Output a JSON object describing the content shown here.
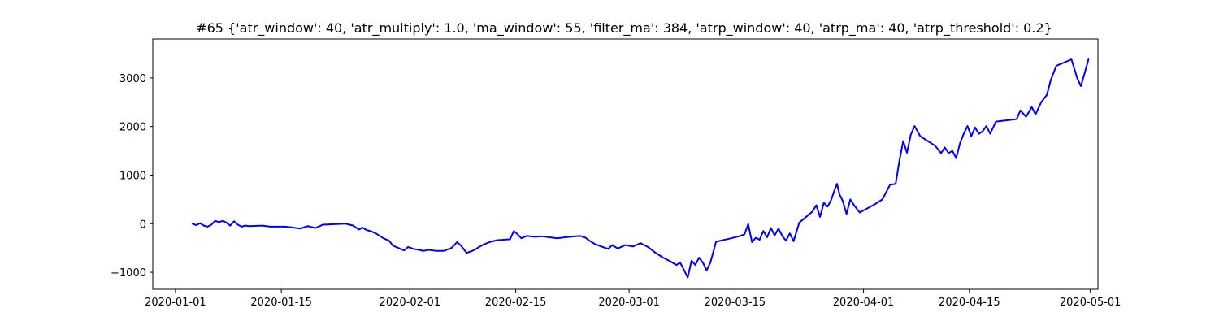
{
  "chart_data": {
    "type": "line",
    "title": "#65 {'atr_window': 40, 'atr_multiply': 1.0, 'ma_window': 55, 'filter_ma': 384, 'atrp_window': 40, 'atrp_ma': 40, 'atrp_threshold': 0.2}",
    "xlabel": "",
    "ylabel": "",
    "x_ticks": [
      "2020-01-01",
      "2020-01-15",
      "2020-02-01",
      "2020-02-15",
      "2020-03-01",
      "2020-03-15",
      "2020-04-01",
      "2020-04-15",
      "2020-05-01"
    ],
    "y_ticks": [
      -1000,
      0,
      1000,
      2000,
      3000
    ],
    "xlim": [
      "2019-12-29",
      "2020-05-02"
    ],
    "ylim": [
      -1350,
      3800
    ],
    "grid": false,
    "series": [
      {
        "color": "#0000ff",
        "points": [
          [
            "2020-01-03",
            0
          ],
          [
            "2020-01-03",
            -30
          ],
          [
            "2020-01-04",
            10
          ],
          [
            "2020-01-04",
            -40
          ],
          [
            "2020-01-05",
            -60
          ],
          [
            "2020-01-05",
            -20
          ],
          [
            "2020-01-06",
            60
          ],
          [
            "2020-01-06",
            30
          ],
          [
            "2020-01-07",
            60
          ],
          [
            "2020-01-07",
            20
          ],
          [
            "2020-01-08",
            -40
          ],
          [
            "2020-01-08",
            50
          ],
          [
            "2020-01-09",
            -20
          ],
          [
            "2020-01-09",
            -60
          ],
          [
            "2020-01-10",
            -40
          ],
          [
            "2020-01-10",
            -50
          ],
          [
            "2020-01-12",
            -40
          ],
          [
            "2020-01-13",
            -60
          ],
          [
            "2020-01-15",
            -60
          ],
          [
            "2020-01-16",
            -80
          ],
          [
            "2020-01-17",
            -100
          ],
          [
            "2020-01-18",
            -50
          ],
          [
            "2020-01-19",
            -90
          ],
          [
            "2020-01-20",
            -20
          ],
          [
            "2020-01-23",
            0
          ],
          [
            "2020-01-24",
            -40
          ],
          [
            "2020-01-25",
            -120
          ],
          [
            "2020-01-25",
            -80
          ],
          [
            "2020-01-26",
            -130
          ],
          [
            "2020-01-26",
            -150
          ],
          [
            "2020-01-27",
            -200
          ],
          [
            "2020-01-28",
            -300
          ],
          [
            "2020-01-29",
            -350
          ],
          [
            "2020-01-29",
            -450
          ],
          [
            "2020-01-30",
            -500
          ],
          [
            "2020-01-31",
            -550
          ],
          [
            "2020-01-31",
            -480
          ],
          [
            "2020-02-01",
            -520
          ],
          [
            "2020-02-02",
            -540
          ],
          [
            "2020-02-02",
            -560
          ],
          [
            "2020-02-03",
            -540
          ],
          [
            "2020-02-04",
            -560
          ],
          [
            "2020-02-05",
            -560
          ],
          [
            "2020-02-06",
            -500
          ],
          [
            "2020-02-07",
            -380
          ],
          [
            "2020-02-07",
            -450
          ],
          [
            "2020-02-08",
            -600
          ],
          [
            "2020-02-09",
            -560
          ],
          [
            "2020-02-09",
            -520
          ],
          [
            "2020-02-10",
            -470
          ],
          [
            "2020-02-10",
            -430
          ],
          [
            "2020-02-11",
            -380
          ],
          [
            "2020-02-12",
            -340
          ],
          [
            "2020-02-14",
            -320
          ],
          [
            "2020-02-14",
            -150
          ],
          [
            "2020-02-15",
            -220
          ],
          [
            "2020-02-15",
            -300
          ],
          [
            "2020-02-16",
            -250
          ],
          [
            "2020-02-17",
            -270
          ],
          [
            "2020-02-18",
            -260
          ],
          [
            "2020-02-19",
            -280
          ],
          [
            "2020-02-20",
            -300
          ],
          [
            "2020-02-21",
            -280
          ],
          [
            "2020-02-23",
            -250
          ],
          [
            "2020-02-24",
            -290
          ],
          [
            "2020-02-24",
            -350
          ],
          [
            "2020-02-25",
            -420
          ],
          [
            "2020-02-26",
            -480
          ],
          [
            "2020-02-27",
            -520
          ],
          [
            "2020-02-27",
            -440
          ],
          [
            "2020-02-28",
            -510
          ],
          [
            "2020-02-29",
            -440
          ],
          [
            "2020-03-01",
            -470
          ],
          [
            "2020-03-02",
            -400
          ],
          [
            "2020-03-03",
            -480
          ],
          [
            "2020-03-04",
            -600
          ],
          [
            "2020-03-05",
            -700
          ],
          [
            "2020-03-06",
            -780
          ],
          [
            "2020-03-07",
            -850
          ],
          [
            "2020-03-07",
            -800
          ],
          [
            "2020-03-08",
            -950
          ],
          [
            "2020-03-08",
            -1110
          ],
          [
            "2020-03-09",
            -760
          ],
          [
            "2020-03-09",
            -850
          ],
          [
            "2020-03-10",
            -700
          ],
          [
            "2020-03-10",
            -800
          ],
          [
            "2020-03-11",
            -960
          ],
          [
            "2020-03-11",
            -800
          ],
          [
            "2020-03-12",
            -370
          ],
          [
            "2020-03-14",
            -300
          ],
          [
            "2020-03-15",
            -260
          ],
          [
            "2020-03-16",
            -220
          ],
          [
            "2020-03-16",
            -10
          ],
          [
            "2020-03-17",
            -380
          ],
          [
            "2020-03-17",
            -290
          ],
          [
            "2020-03-18",
            -330
          ],
          [
            "2020-03-18",
            -150
          ],
          [
            "2020-03-19",
            -280
          ],
          [
            "2020-03-19",
            -90
          ],
          [
            "2020-03-20",
            -240
          ],
          [
            "2020-03-20",
            -100
          ],
          [
            "2020-03-21",
            -250
          ],
          [
            "2020-03-21",
            -350
          ],
          [
            "2020-03-22",
            -200
          ],
          [
            "2020-03-22",
            -360
          ],
          [
            "2020-03-23",
            20
          ],
          [
            "2020-03-25",
            250
          ],
          [
            "2020-03-25",
            380
          ],
          [
            "2020-03-26",
            140
          ],
          [
            "2020-03-26",
            430
          ],
          [
            "2020-03-27",
            350
          ],
          [
            "2020-03-27",
            500
          ],
          [
            "2020-03-28",
            690
          ],
          [
            "2020-03-28",
            820
          ],
          [
            "2020-03-28",
            600
          ],
          [
            "2020-03-29",
            470
          ],
          [
            "2020-03-29",
            200
          ],
          [
            "2020-03-30",
            500
          ],
          [
            "2020-03-30",
            380
          ],
          [
            "2020-03-31",
            230
          ],
          [
            "2020-04-02",
            400
          ],
          [
            "2020-04-03",
            500
          ],
          [
            "2020-04-04",
            800
          ],
          [
            "2020-04-05",
            820
          ],
          [
            "2020-04-05",
            1300
          ],
          [
            "2020-04-06",
            1700
          ],
          [
            "2020-04-06",
            1460
          ],
          [
            "2020-04-07",
            1830
          ],
          [
            "2020-04-07",
            2010
          ],
          [
            "2020-04-08",
            1800
          ],
          [
            "2020-04-10",
            1600
          ],
          [
            "2020-04-11",
            1450
          ],
          [
            "2020-04-11",
            1570
          ],
          [
            "2020-04-12",
            1450
          ],
          [
            "2020-04-12",
            1500
          ],
          [
            "2020-04-13",
            1350
          ],
          [
            "2020-04-13",
            1650
          ],
          [
            "2020-04-14",
            1850
          ],
          [
            "2020-04-14",
            2010
          ],
          [
            "2020-04-15",
            1800
          ],
          [
            "2020-04-15",
            1980
          ],
          [
            "2020-04-16",
            1850
          ],
          [
            "2020-04-16",
            1900
          ],
          [
            "2020-04-17",
            2010
          ],
          [
            "2020-04-17",
            1850
          ],
          [
            "2020-04-18",
            2100
          ],
          [
            "2020-04-21",
            2150
          ],
          [
            "2020-04-21",
            2330
          ],
          [
            "2020-04-22",
            2200
          ],
          [
            "2020-04-23",
            2400
          ],
          [
            "2020-04-23",
            2250
          ],
          [
            "2020-04-24",
            2500
          ],
          [
            "2020-04-25",
            2650
          ],
          [
            "2020-04-25",
            2950
          ],
          [
            "2020-04-26",
            3250
          ],
          [
            "2020-04-28",
            3380
          ],
          [
            "2020-04-29",
            3000
          ],
          [
            "2020-04-29",
            2830
          ],
          [
            "2020-04-30",
            3100
          ],
          [
            "2020-04-30",
            3380
          ]
        ]
      }
    ]
  }
}
